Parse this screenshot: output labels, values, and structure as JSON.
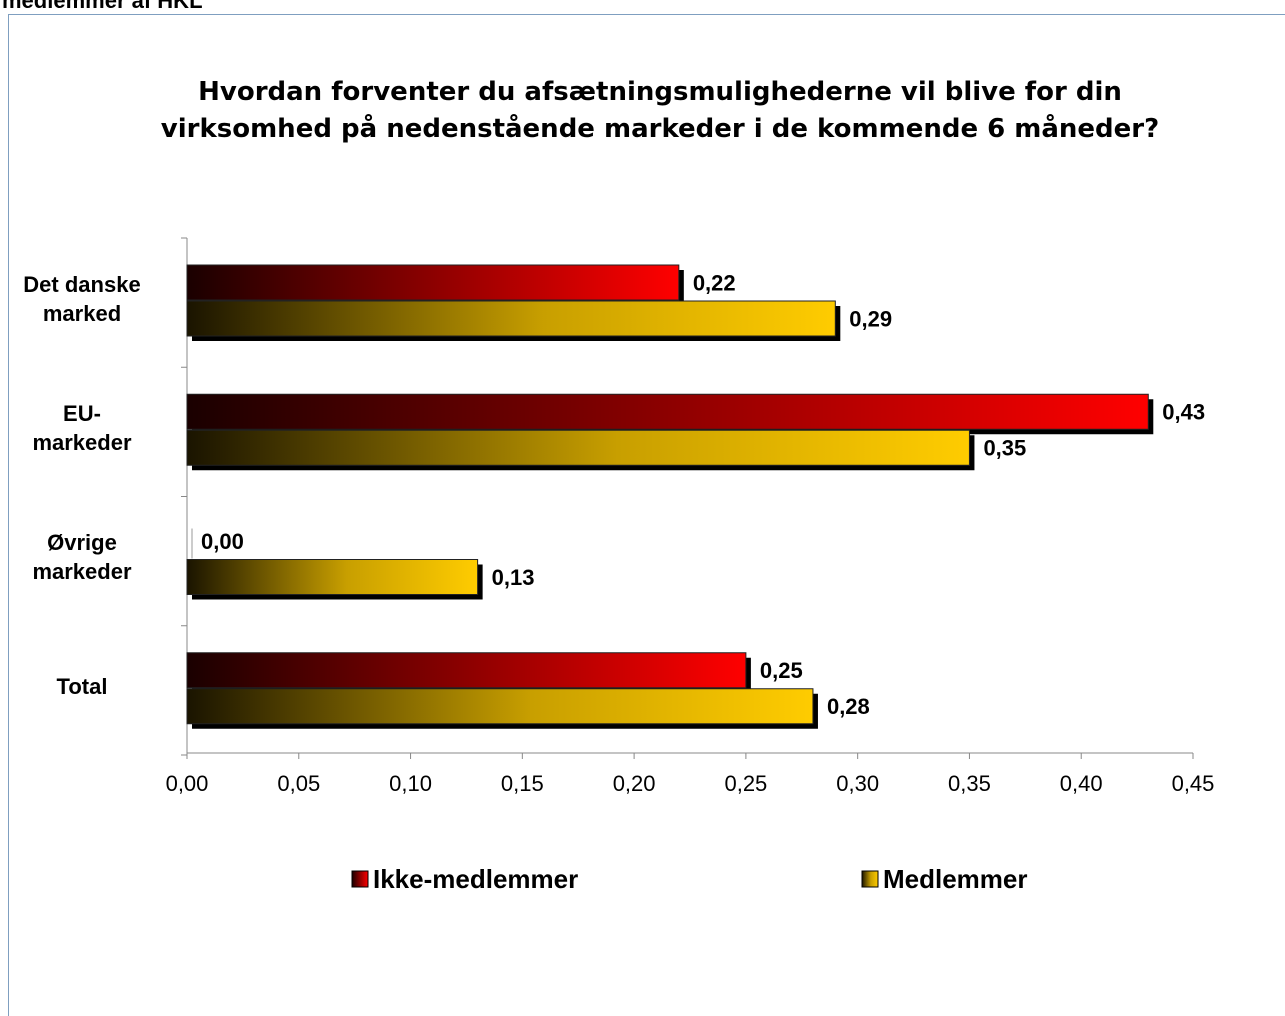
{
  "header": "medlemmer af HKL",
  "chart_data": {
    "type": "barh",
    "title": "Hvordan forventer du afsætningsmulighederne vil blive for din\nvirksomhed på nedenstående markeder i de kommende 6 måneder?",
    "categories": [
      "Det danske\nmarked",
      "EU-\nmarkeder",
      "Øvrige\nmarkeder",
      "Total"
    ],
    "series": [
      {
        "name": "Ikke-medlemmer",
        "color": "#ff0000",
        "values": [
          0.22,
          0.43,
          0.0,
          0.25
        ],
        "value_labels": [
          "0,22",
          "0,43",
          "0,00",
          "0,25"
        ]
      },
      {
        "name": "Medlemmer",
        "color": "#ffcc00",
        "values": [
          0.29,
          0.35,
          0.13,
          0.28
        ],
        "value_labels": [
          "0,29",
          "0,35",
          "0,13",
          "0,28"
        ]
      }
    ],
    "xlim": [
      0,
      0.45
    ],
    "xticks": [
      {
        "value": 0,
        "label": "0,00"
      },
      {
        "value": 0.05,
        "label": "0,05"
      },
      {
        "value": 0.1,
        "label": "0,10"
      },
      {
        "value": 0.15,
        "label": "0,15"
      },
      {
        "value": 0.2,
        "label": "0,20"
      },
      {
        "value": 0.25,
        "label": "0,25"
      },
      {
        "value": 0.3,
        "label": "0,30"
      },
      {
        "value": 0.35,
        "label": "0,35"
      },
      {
        "value": 0.4,
        "label": "0,40"
      },
      {
        "value": 0.45,
        "label": "0,45"
      }
    ],
    "grid": false,
    "legend": "bottom"
  }
}
